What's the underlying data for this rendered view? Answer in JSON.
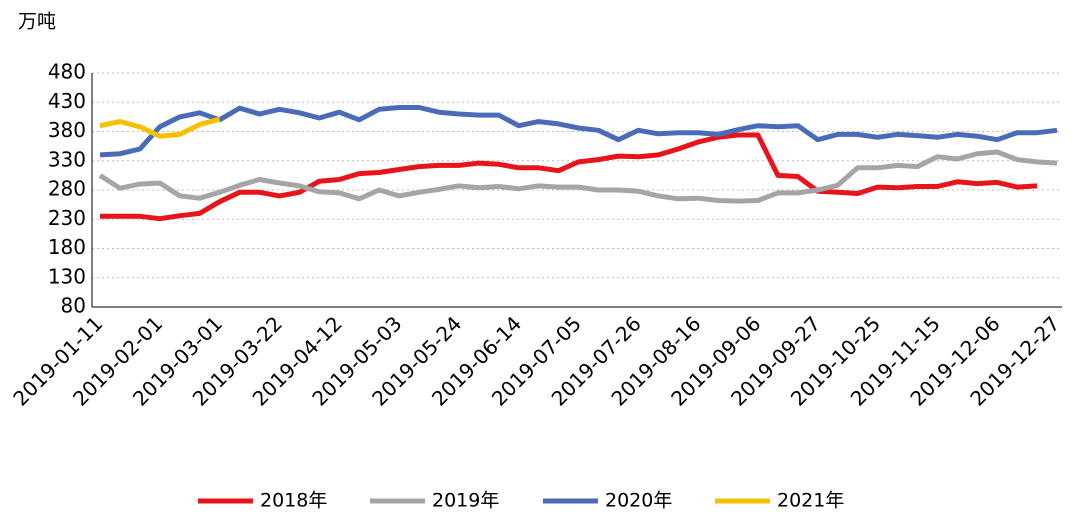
{
  "chart_data": {
    "type": "line",
    "unit": "万吨",
    "categories": [
      "2019-01-11",
      null,
      null,
      "2019-02-01",
      null,
      null,
      "2019-03-01",
      null,
      null,
      "2019-03-22",
      null,
      null,
      "2019-04-12",
      null,
      null,
      "2019-05-03",
      null,
      null,
      "2019-05-24",
      null,
      null,
      "2019-06-14",
      null,
      null,
      "2019-07-05",
      null,
      null,
      "2019-07-26",
      null,
      null,
      "2019-08-16",
      null,
      null,
      "2019-09-06",
      null,
      null,
      "2019-09-27",
      null,
      null,
      "2019-10-25",
      null,
      null,
      "2019-11-15",
      null,
      null,
      "2019-12-06",
      null,
      null,
      "2019-12-27"
    ],
    "series": [
      {
        "name": "2018年",
        "color": "#e8141c",
        "values": [
          235,
          235,
          235,
          231,
          236,
          240,
          260,
          276,
          276,
          270,
          276,
          295,
          298,
          308,
          310,
          315,
          320,
          322,
          322,
          326,
          324,
          318,
          318,
          313,
          328,
          332,
          338,
          337,
          340,
          350,
          362,
          370,
          374,
          374,
          305,
          303,
          278,
          276,
          274,
          285,
          284,
          286,
          286,
          294,
          291,
          293,
          285,
          287,
          null
        ]
      },
      {
        "name": "2019年",
        "color": "#a5a5a5",
        "values": [
          305,
          283,
          290,
          292,
          270,
          266,
          276,
          288,
          298,
          292,
          287,
          277,
          275,
          265,
          280,
          270,
          276,
          281,
          287,
          284,
          286,
          282,
          287,
          285,
          285,
          280,
          280,
          278,
          270,
          265,
          266,
          262,
          261,
          262,
          275,
          275,
          280,
          288,
          318,
          318,
          322,
          320,
          337,
          333,
          342,
          345,
          332,
          328,
          326
        ]
      },
      {
        "name": "2020年",
        "color": "#4a6cb8",
        "values": [
          340,
          342,
          350,
          388,
          405,
          412,
          400,
          420,
          410,
          418,
          412,
          403,
          413,
          400,
          418,
          421,
          421,
          413,
          410,
          408,
          408,
          390,
          397,
          393,
          386,
          382,
          366,
          382,
          376,
          378,
          378,
          375,
          383,
          390,
          388,
          390,
          366,
          375,
          375,
          370,
          375,
          373,
          370,
          375,
          372,
          366,
          378,
          378,
          382
        ]
      },
      {
        "name": "2021年",
        "color": "#f5c000",
        "values": [
          390,
          397,
          388,
          372,
          375,
          392,
          401,
          null,
          null,
          null,
          null,
          null,
          null,
          null,
          null,
          null,
          null,
          null,
          null,
          null,
          null,
          null,
          null,
          null,
          null,
          null,
          null,
          null,
          null,
          null,
          null,
          null,
          null,
          null,
          null,
          null,
          null,
          null,
          null,
          null,
          null,
          null,
          null,
          null,
          null,
          null,
          null,
          null,
          null
        ]
      }
    ],
    "ylim": [
      80,
      480
    ],
    "yticks": [
      80,
      130,
      180,
      230,
      280,
      330,
      380,
      430,
      480
    ],
    "grid": true,
    "legend": "bottom"
  }
}
